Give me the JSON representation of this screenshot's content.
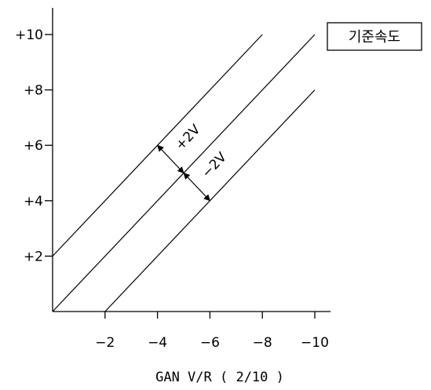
{
  "chart_data": {
    "type": "line",
    "xlabel": "GAN V/R ( 2/10 )",
    "ylabel": "",
    "x_tick_labels": [
      "-2",
      "-4",
      "-6",
      "-8",
      "-10"
    ],
    "y_tick_labels": [
      "+2",
      "+4",
      "+6",
      "+8",
      "+10"
    ],
    "x_ticks": [
      2,
      4,
      6,
      8,
      10
    ],
    "y_ticks": [
      2,
      4,
      6,
      8,
      10
    ],
    "xlim": [
      0,
      10.6
    ],
    "ylim": [
      0,
      11
    ],
    "legend": {
      "text": "기준속도",
      "placement": "top-right"
    },
    "series": [
      {
        "name": "+2V",
        "x": [
          0,
          8
        ],
        "y": [
          2,
          10
        ]
      },
      {
        "name": "기준속도",
        "x": [
          0,
          10
        ],
        "y": [
          0,
          10
        ]
      },
      {
        "name": "-2V",
        "x": [
          2,
          10
        ],
        "y": [
          0,
          8
        ]
      }
    ],
    "annotations": [
      {
        "text": "+2V",
        "from": [
          4,
          6
        ],
        "to": [
          5,
          5
        ]
      },
      {
        "text": "-2V",
        "from": [
          5,
          5
        ],
        "to": [
          6,
          4
        ]
      }
    ],
    "grid": false
  }
}
